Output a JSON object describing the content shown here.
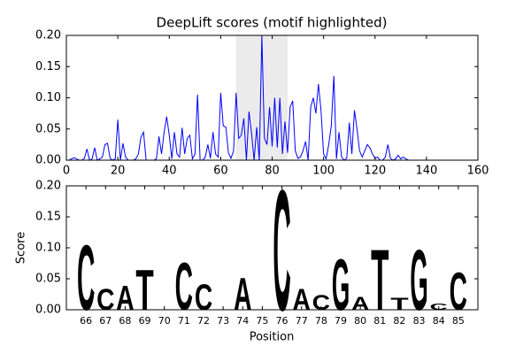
{
  "chart_data": [
    {
      "type": "line",
      "title": "DeepLift scores (motif highlighted)",
      "x": [
        0,
        1,
        2,
        3,
        4,
        5,
        6,
        7,
        8,
        9,
        10,
        11,
        12,
        13,
        14,
        15,
        16,
        17,
        18,
        19,
        20,
        21,
        22,
        23,
        24,
        25,
        26,
        27,
        28,
        29,
        30,
        31,
        32,
        33,
        34,
        35,
        36,
        37,
        38,
        39,
        40,
        41,
        42,
        43,
        44,
        45,
        46,
        47,
        48,
        49,
        50,
        51,
        52,
        53,
        54,
        55,
        56,
        57,
        58,
        59,
        60,
        61,
        62,
        63,
        64,
        65,
        66,
        67,
        68,
        69,
        70,
        71,
        72,
        73,
        74,
        75,
        76,
        77,
        78,
        79,
        80,
        81,
        82,
        83,
        84,
        85,
        86,
        87,
        88,
        89,
        90,
        91,
        92,
        93,
        94,
        95,
        96,
        97,
        98,
        99,
        100,
        101,
        102,
        103,
        104,
        105,
        106,
        107,
        108,
        109,
        110,
        111,
        112,
        113,
        114,
        115,
        116,
        117,
        118,
        119,
        120,
        121,
        122,
        123,
        124,
        125,
        126,
        127,
        128,
        129,
        130,
        131,
        132,
        133,
        134,
        135,
        136,
        137,
        138,
        139,
        140,
        141,
        142,
        143,
        144,
        145
      ],
      "series": [
        {
          "color": "#0000ff",
          "values": [
            0,
            0,
            0.002,
            0.004,
            0.002,
            0,
            0,
            0.003,
            0.018,
            0,
            0.002,
            0.02,
            0,
            0.002,
            0.005,
            0.025,
            0.027,
            0.003,
            0,
            0.002,
            0.065,
            0,
            0.027,
            0.005,
            0,
            0,
            0,
            0.002,
            0.01,
            0.037,
            0.045,
            0,
            0,
            0,
            0,
            0.002,
            0.038,
            0.01,
            0.045,
            0.07,
            0.04,
            0.002,
            0.045,
            0.01,
            0.005,
            0.052,
            0.01,
            0.035,
            0.04,
            0.002,
            0.01,
            0.105,
            0,
            0,
            0.005,
            0.025,
            0.003,
            0.045,
            0.01,
            0.005,
            0.108,
            0.055,
            0.053,
            0.012,
            0.003,
            0.015,
            0.108,
            0.035,
            0.04,
            0.067,
            0,
            0.078,
            0.043,
            0,
            0.053,
            0,
            0.2,
            0.035,
            0.025,
            0.085,
            0.022,
            0.1,
            0.02,
            0.1,
            0.01,
            0.062,
            0.012,
            0.085,
            0.095,
            0.015,
            0.003,
            0.005,
            0.015,
            0.03,
            0,
            0.085,
            0.1,
            0.075,
            0.122,
            0.08,
            0.01,
            0.002,
            0.025,
            0.055,
            0.135,
            0.002,
            0.045,
            0.005,
            0,
            0.003,
            0.06,
            0.01,
            0.08,
            0.05,
            0.015,
            0.005,
            0.015,
            0.025,
            0.02,
            0.01,
            0.003,
            0.005,
            0,
            0,
            0.005,
            0.025,
            0.003,
            0,
            0.002,
            0.008,
            0.002,
            0.005,
            0.002,
            0,
            0,
            0,
            0,
            0,
            0,
            0,
            0,
            0,
            0,
            0,
            0,
            0
          ]
        }
      ],
      "highlight": [
        66,
        86
      ],
      "highlight_color": "#ebebeb",
      "xlim": [
        0,
        160
      ],
      "xticks": [
        0,
        20,
        40,
        60,
        80,
        100,
        120,
        140,
        160
      ],
      "ylim": [
        0,
        0.2
      ],
      "yticks": [
        {
          "value": 0,
          "label": "0.00"
        },
        {
          "value": 0.05,
          "label": "0.05"
        },
        {
          "value": 0.1,
          "label": "0.10"
        },
        {
          "value": 0.15,
          "label": "0.15"
        },
        {
          "value": 0.2,
          "label": "0.20"
        }
      ]
    },
    {
      "type": "logo",
      "xlabel": "Position",
      "ylabel": "Score",
      "x": [
        66,
        67,
        68,
        69,
        70,
        71,
        72,
        73,
        74,
        75,
        76,
        77,
        78,
        79,
        80,
        81,
        82,
        83,
        84,
        85
      ],
      "letters": [
        "C",
        "C",
        "A",
        "T",
        null,
        "C",
        "C",
        null,
        "A",
        null,
        "C",
        "A",
        "C",
        "G",
        "A",
        "T",
        "T",
        "G",
        "C",
        "C"
      ],
      "values": [
        0.108,
        0.035,
        0.04,
        0.067,
        0,
        0.078,
        0.043,
        0,
        0.053,
        0,
        0.2,
        0.035,
        0.025,
        0.085,
        0.022,
        0.1,
        0.02,
        0.1,
        0.01,
        0.062
      ],
      "letter_colors": {
        "A": "#008000",
        "C": "#0000ff",
        "G": "#ffa500",
        "T": "#ff0000"
      },
      "xlim": [
        65,
        86
      ],
      "xticks": [
        66,
        67,
        68,
        69,
        70,
        71,
        72,
        73,
        74,
        75,
        76,
        77,
        78,
        79,
        80,
        81,
        82,
        83,
        84,
        85
      ],
      "ylim": [
        0,
        0.2
      ],
      "yticks": [
        {
          "value": 0,
          "label": "0.00"
        },
        {
          "value": 0.05,
          "label": "0.05"
        },
        {
          "value": 0.1,
          "label": "0.10"
        },
        {
          "value": 0.15,
          "label": "0.15"
        },
        {
          "value": 0.2,
          "label": "0.20"
        }
      ]
    }
  ]
}
